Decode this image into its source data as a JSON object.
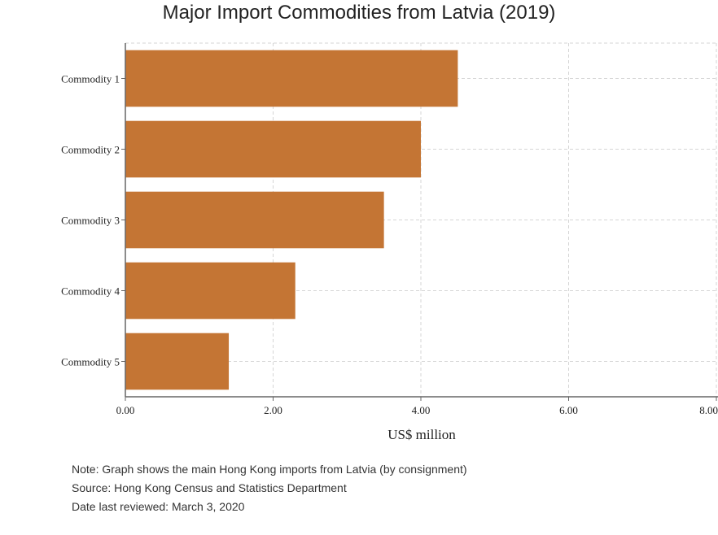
{
  "chart_data": {
    "type": "bar",
    "orientation": "horizontal",
    "title": "Major Import Commodities from Latvia (2019)",
    "xlabel": "US$ million",
    "ylabel": "",
    "categories": [
      "Commodity 1",
      "Commodity 2",
      "Commodity 3",
      "Commodity 4",
      "Commodity 5"
    ],
    "values": [
      4.5,
      4.0,
      3.5,
      2.3,
      1.4
    ],
    "xlim": [
      0,
      8
    ],
    "xticks": [
      "0.00",
      "2.00",
      "4.00",
      "6.00",
      "8.00"
    ],
    "bar_color": "#c47534",
    "grid": true,
    "legend": "none"
  },
  "notes": {
    "note": "Note: Graph shows the main Hong Kong imports from Latvia (by consignment)",
    "source": "Source: Hong Kong Census and Statistics Department",
    "reviewed": "Date last reviewed: March 3, 2020"
  }
}
